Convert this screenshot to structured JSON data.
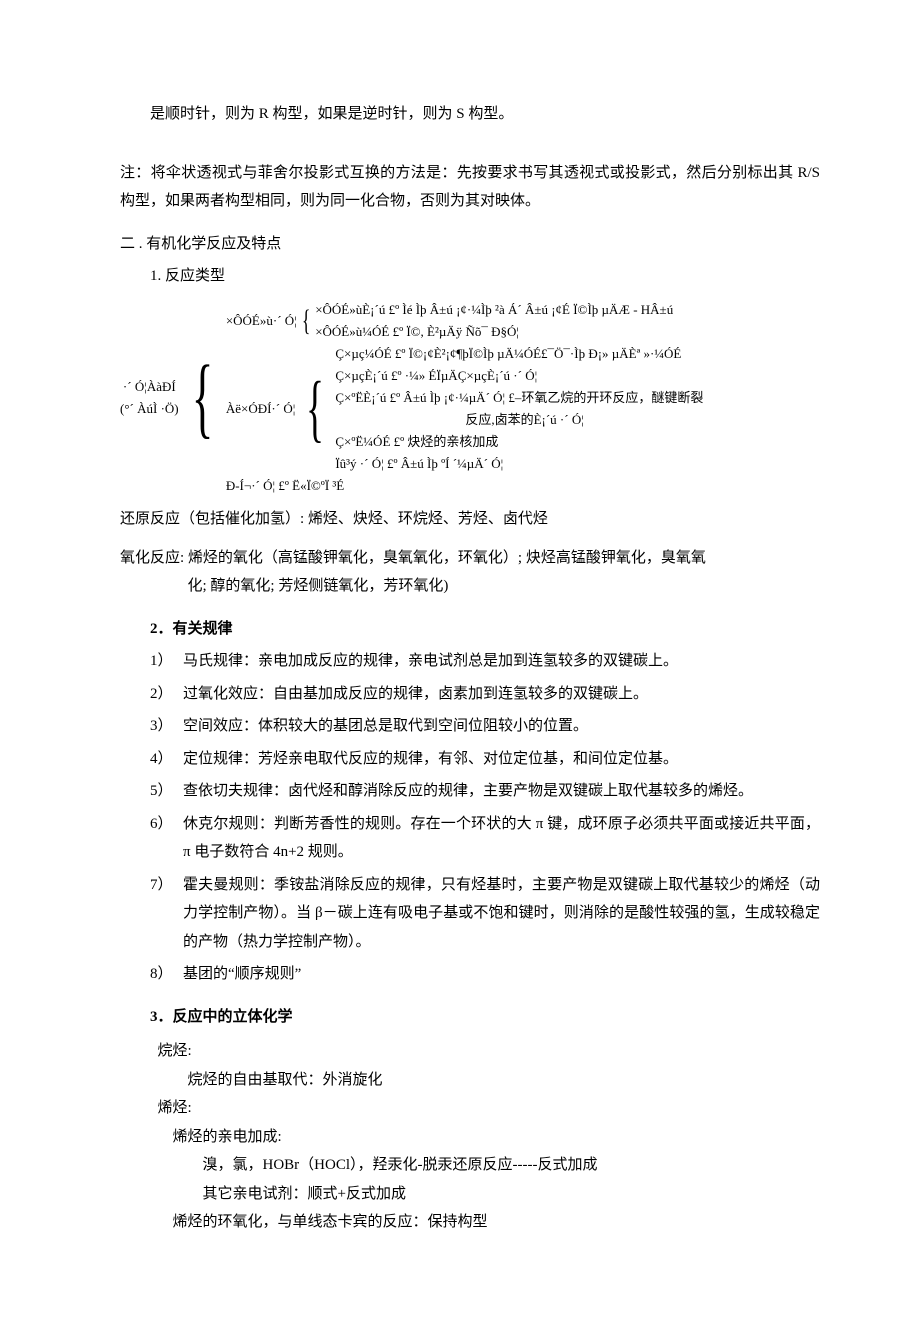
{
  "colors": {
    "text": "#000000",
    "background": "#ffffff"
  },
  "typography": {
    "body_fontsize_pt": 11,
    "line_height": 1.9,
    "font_family": "SimSun"
  },
  "top_para1": "是顺时针，则为 R 构型，如果是逆时针，则为 S 构型。",
  "note_para": "注：将伞状透视式与菲舍尔投影式互换的方法是：先按要求书写其透视式或投影式，然后分别标出其 R/S 构型，如果两者构型相同，则为同一化合物，否则为其对映体。",
  "sec2_title": "二 . 有机化学反应及特点",
  "sec2_sub1": "1. 反应类型",
  "brace": {
    "root_label1": "·´ Ó¦ÀàÐÍ",
    "root_label2": "(°´ ÀúÌ ·Ö)",
    "row1_label": "×ÔÓÉ»ù·´ Ó¦",
    "row1a": "×ÔÓÉ»ùÈ¡´ú £º Ìé Ìþ Â±ú ¡¢·¼Ìþ ²à Á´ Â±ú ¡¢É Ï©Ìþ µÄÆ - HÂ±ú",
    "row1b": "×ÔÓÉ»ù¼ÓÉ £º Ï©, È²µÄÿ Ñõ¯ Đ§Ó¦",
    "row2_label": "Àë×ÓÐÍ·´ Ó¦",
    "row2a": "Ç×µç¼ÓÉ £º Ï©¡¢È²¡¢¶þÏ©Ìþ µÄ¼ÓÉ£¯Ö¯·Ìþ Đ¡» µÄÈª »·¼ÓÉ",
    "row2b": "Ç×µçÈ¡´ú £º ·¼» ÉÏµÄÇ×µçÈ¡´ú ·´ Ó¦",
    "row2c_1": "Ç×ºËÈ¡´ú £º Â±ú Ìþ ¡¢·¼µÄ´ Ó¦ £–环氧乙烷的开环反应，醚键断裂",
    "row2c_2": "反应,卤苯的È¡´ú ·´ Ó¦",
    "row2d": "Ç×ºË¼ÓÉ £º 炔烃的亲核加成",
    "row2e": "Ïû³ý ·´ Ó¦ £º Â±ú Ìþ ºÍ ´¼µÄ´ Ó¦",
    "row3": "Đ-Í¬·´ Ó¦ £º Ë«Ï©ºÏ ³É"
  },
  "reduce_line": "还原反应（包括催化加氢）: 烯烃、炔烃、环烷烃、芳烃、卤代烃",
  "oxidize_line1": "氧化反应: 烯烃的氧化（高锰酸钾氧化，臭氧氧化，环氧化）; 炔烃高锰酸钾氧化，臭氧氧",
  "oxidize_line2": "化; 醇的氧化; 芳烃侧链氧化，芳环氧化)",
  "sec2_sub2": "2．有关规律",
  "rules": [
    {
      "n": "1）",
      "t": "马氏规律：亲电加成反应的规律，亲电试剂总是加到连氢较多的双键碳上。"
    },
    {
      "n": "2）",
      "t": "过氧化效应：自由基加成反应的规律，卤素加到连氢较多的双键碳上。"
    },
    {
      "n": "3）",
      "t": "空间效应：体积较大的基团总是取代到空间位阻较小的位置。"
    },
    {
      "n": "4）",
      "t": "定位规律：芳烃亲电取代反应的规律，有邻、对位定位基，和间位定位基。"
    },
    {
      "n": "5）",
      "t": "查依切夫规律：卤代烃和醇消除反应的规律，主要产物是双键碳上取代基较多的烯烃。"
    },
    {
      "n": "6）",
      "t": "休克尔规则：判断芳香性的规则。存在一个环状的大 π 键，成环原子必须共平面或接近共平面，π 电子数符合 4n+2 规则。"
    },
    {
      "n": "7）",
      "t": "霍夫曼规则：季铵盐消除反应的规律，只有烃基时，主要产物是双键碳上取代基较少的烯烃（动力学控制产物）。当 β－碳上连有吸电子基或不饱和键时，则消除的是酸性较强的氢，生成较稳定的产物（热力学控制产物）。"
    },
    {
      "n": "8）",
      "t": "基团的“顺序规则”"
    }
  ],
  "sec2_sub3": "3．反应中的立体化学",
  "stereo": {
    "l1": "烷烃:",
    "l2": "烷烃的自由基取代：外消旋化",
    "l3": "烯烃:",
    "l4": "烯烃的亲电加成:",
    "l5": "溴，氯，HOBr（HOCl），羟汞化-脱汞还原反应-----反式加成",
    "l6": "其它亲电试剂：顺式+反式加成",
    "l7": "烯烃的环氧化，与单线态卡宾的反应：保持构型"
  }
}
